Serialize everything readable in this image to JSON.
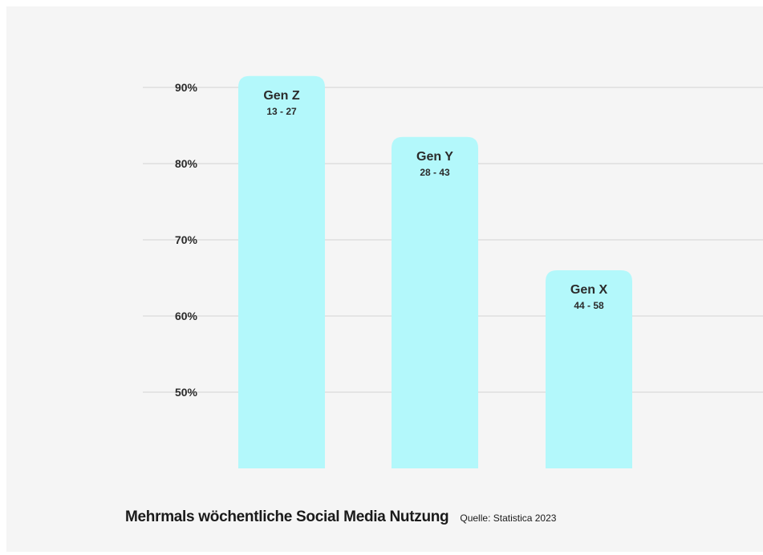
{
  "chart_data": {
    "type": "bar",
    "categories": [
      "Gen Z",
      "Gen Y",
      "Gen X"
    ],
    "category_sublabels": [
      "13 - 27",
      "28 - 43",
      "44 - 58"
    ],
    "values": [
      91.5,
      83.5,
      66
    ],
    "yticks": [
      "50%",
      "60%",
      "70%",
      "80%",
      "90%"
    ],
    "ytick_values": [
      50,
      60,
      70,
      80,
      90
    ],
    "ylim": [
      40,
      95
    ],
    "grid": true,
    "title": "Mehrmals wöchentliche Social Media Nutzung",
    "source": "Quelle: Statistica 2023",
    "bar_color": "#b3f8fb",
    "grid_color": "#dedede",
    "text_color": "#2b2b2b",
    "background": "#f5f5f5"
  }
}
